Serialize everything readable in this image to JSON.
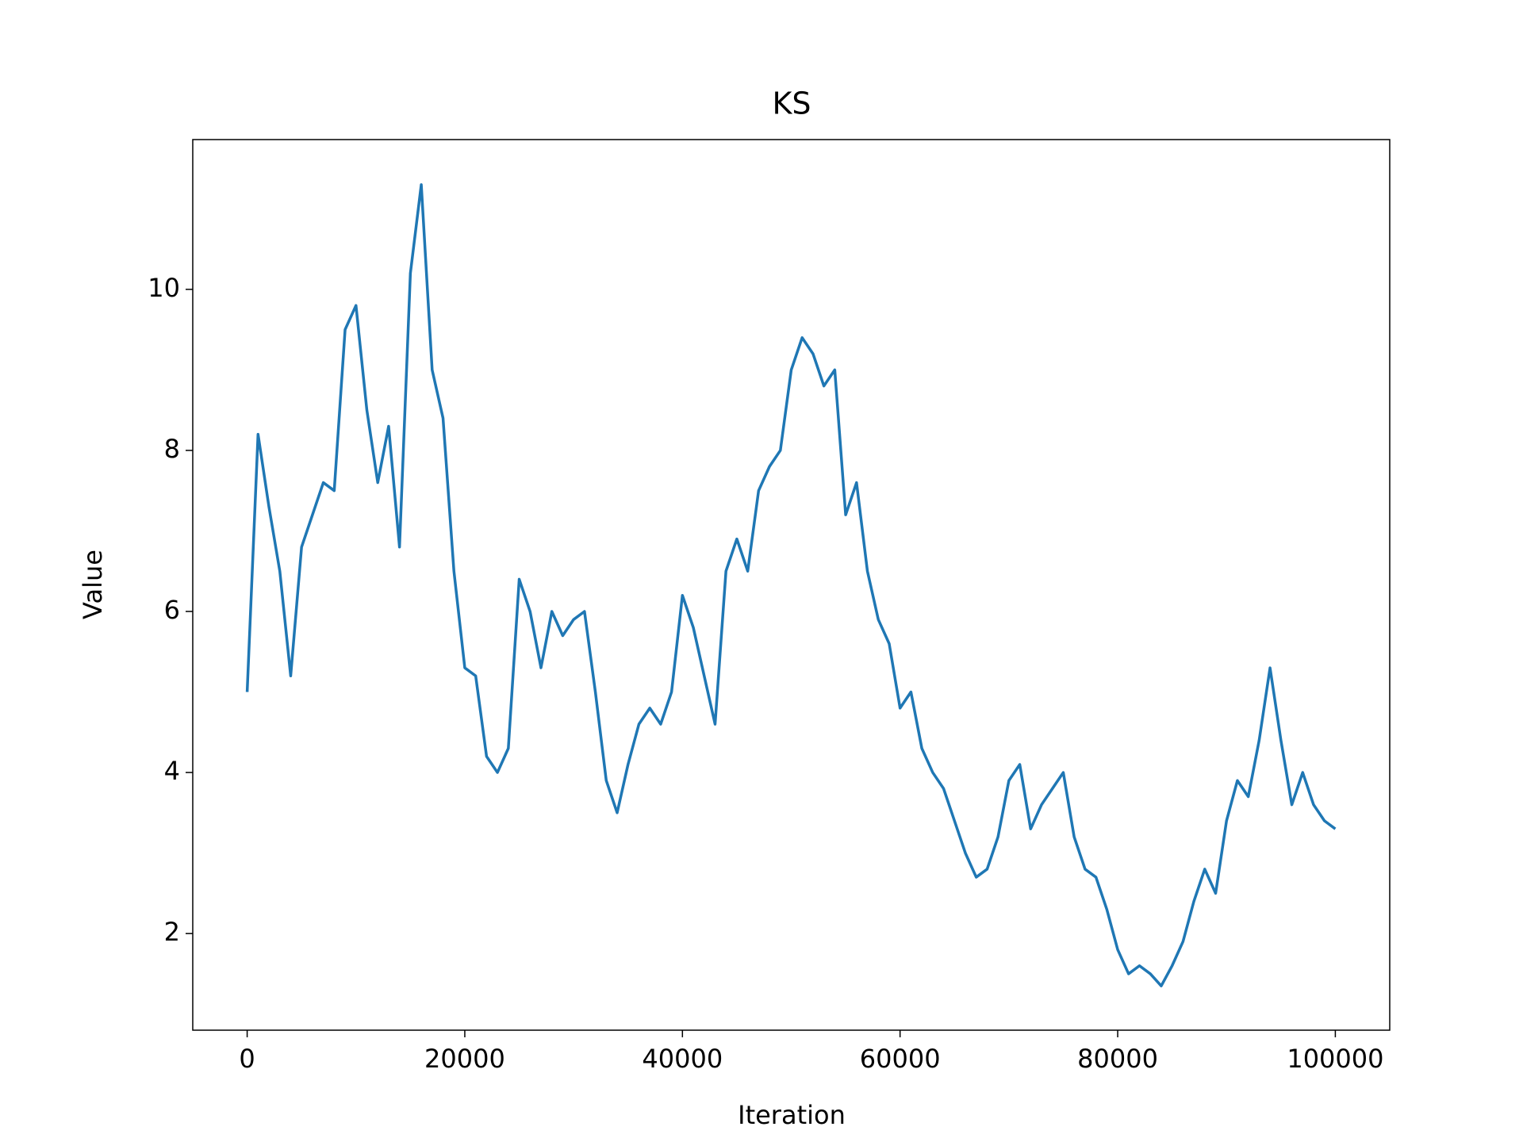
{
  "chart_data": {
    "type": "line",
    "title": "KS",
    "x_label": "Iteration",
    "y_label": "Value",
    "x": [
      0,
      1000,
      2000,
      3000,
      4000,
      5000,
      6000,
      7000,
      8000,
      9000,
      10000,
      11000,
      12000,
      13000,
      14000,
      15000,
      16000,
      17000,
      18000,
      19000,
      20000,
      21000,
      22000,
      23000,
      24000,
      25000,
      26000,
      27000,
      28000,
      29000,
      30000,
      31000,
      32000,
      33000,
      34000,
      35000,
      36000,
      37000,
      38000,
      39000,
      40000,
      41000,
      42000,
      43000,
      44000,
      45000,
      46000,
      47000,
      48000,
      49000,
      50000,
      51000,
      52000,
      53000,
      54000,
      55000,
      56000,
      57000,
      58000,
      59000,
      60000,
      61000,
      62000,
      63000,
      64000,
      65000,
      66000,
      67000,
      68000,
      69000,
      70000,
      71000,
      72000,
      73000,
      74000,
      75000,
      76000,
      77000,
      78000,
      79000,
      80000,
      81000,
      82000,
      83000,
      84000,
      85000,
      86000,
      87000,
      88000,
      89000,
      90000,
      91000,
      92000,
      93000,
      94000,
      95000,
      96000,
      97000,
      98000,
      99000,
      100000
    ],
    "series": [
      {
        "name": "KS",
        "color": "#1f77b4",
        "values": [
          5.0,
          8.2,
          7.3,
          6.5,
          5.2,
          6.8,
          7.2,
          7.6,
          7.5,
          9.5,
          9.8,
          8.5,
          7.6,
          8.3,
          6.8,
          10.2,
          11.3,
          9.0,
          8.4,
          6.5,
          5.3,
          5.2,
          4.2,
          4.0,
          4.3,
          6.4,
          6.0,
          5.3,
          6.0,
          5.7,
          5.9,
          6.0,
          5.0,
          3.9,
          3.5,
          4.1,
          4.6,
          4.8,
          4.6,
          5.0,
          6.2,
          5.8,
          5.2,
          4.6,
          6.5,
          6.9,
          6.5,
          7.5,
          7.8,
          8.0,
          9.0,
          9.4,
          9.2,
          8.8,
          9.0,
          7.2,
          7.6,
          6.5,
          5.9,
          5.6,
          4.8,
          5.0,
          4.3,
          4.0,
          3.8,
          3.4,
          3.0,
          2.7,
          2.8,
          3.2,
          3.9,
          4.1,
          3.3,
          3.6,
          3.8,
          4.0,
          3.2,
          2.8,
          2.7,
          2.3,
          1.8,
          1.5,
          1.6,
          1.5,
          1.35,
          1.6,
          1.9,
          2.4,
          2.8,
          2.5,
          3.4,
          3.9,
          3.7,
          4.4,
          5.3,
          4.4,
          3.6,
          4.0,
          3.6,
          3.4,
          3.3
        ]
      }
    ],
    "xlim": [
      -5000,
      105000
    ],
    "ylim": [
      0.8,
      11.86
    ],
    "xticks": [
      0,
      20000,
      40000,
      60000,
      80000,
      100000
    ],
    "yticks": [
      2,
      4,
      6,
      8,
      10
    ]
  }
}
